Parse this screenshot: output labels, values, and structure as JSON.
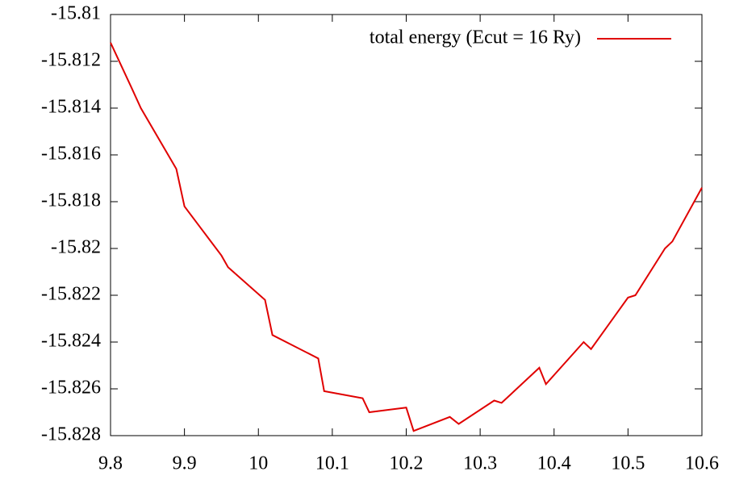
{
  "chart_data": {
    "type": "line",
    "series": [
      {
        "name": "total energy (Ecut = 16 Ry)",
        "color": "#e00000",
        "x": [
          9.8,
          9.828,
          9.841,
          9.889,
          9.9,
          9.95,
          9.959,
          10.009,
          10.019,
          10.081,
          10.089,
          10.141,
          10.15,
          10.2,
          10.21,
          10.259,
          10.271,
          10.319,
          10.329,
          10.38,
          10.389,
          10.44,
          10.45,
          10.5,
          10.51,
          10.55,
          10.56,
          10.6
        ],
        "values": [
          -15.8112,
          -15.8131,
          -15.814,
          -15.8166,
          -15.8182,
          -15.8203,
          -15.8208,
          -15.8222,
          -15.8237,
          -15.8247,
          -15.8261,
          -15.8264,
          -15.827,
          -15.8268,
          -15.8278,
          -15.8272,
          -15.8275,
          -15.8265,
          -15.8266,
          -15.8251,
          -15.8258,
          -15.824,
          -15.8243,
          -15.8221,
          -15.822,
          -15.82,
          -15.8197,
          -15.8174
        ]
      }
    ],
    "xlim": [
      9.8,
      10.6
    ],
    "xticks": [
      9.8,
      9.9,
      10,
      10.1,
      10.2,
      10.3,
      10.4,
      10.5,
      10.6
    ],
    "ylim": [
      -15.828,
      -15.81
    ],
    "yticks": [
      -15.828,
      -15.826,
      -15.824,
      -15.822,
      -15.82,
      -15.818,
      -15.816,
      -15.814,
      -15.812,
      -15.81
    ],
    "legend": "top-right",
    "grid": false
  }
}
